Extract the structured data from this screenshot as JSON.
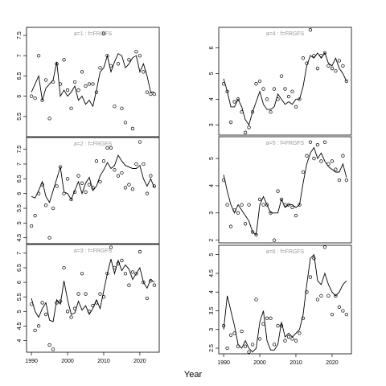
{
  "xlabel": "Year",
  "chart_data": [
    {
      "type": "scatter-line",
      "title": "a=1 : f=FRGFS",
      "x": [
        1990,
        1991,
        1992,
        1993,
        1994,
        1995,
        1996,
        1997,
        1998,
        1999,
        2000,
        2001,
        2002,
        2003,
        2004,
        2005,
        2006,
        2007,
        2008,
        2009,
        2010,
        2011,
        2012,
        2013,
        2014,
        2015,
        2016,
        2017,
        2018,
        2019,
        2020,
        2021,
        2022,
        2023,
        2024
      ],
      "points": [
        6.0,
        5.95,
        7.0,
        5.9,
        6.4,
        5.45,
        6.35,
        6.8,
        6.3,
        6.9,
        6.15,
        5.7,
        6.35,
        6.15,
        6.6,
        6.25,
        6.3,
        6.3,
        6.1,
        6.7,
        7.55,
        7.0,
        6.75,
        5.75,
        6.8,
        5.7,
        5.35,
        6.9,
        5.2,
        7.1,
        7.0,
        6.6,
        6.1,
        6.05,
        6.05
      ],
      "line": [
        6.1,
        6.3,
        6.5,
        5.9,
        6.2,
        6.3,
        6.4,
        6.85,
        6.0,
        6.15,
        6.0,
        6.1,
        6.25,
        5.9,
        6.0,
        5.8,
        5.9,
        5.75,
        6.15,
        6.6,
        6.7,
        7.0,
        6.6,
        6.85,
        7.05,
        7.0,
        6.7,
        6.8,
        6.95,
        7.0,
        6.6,
        6.8,
        6.5,
        6.1,
        6.1
      ],
      "xlim": [
        1988.64,
        2025.36
      ],
      "ylim": [
        5.0,
        7.7
      ],
      "yticks": [
        5.5,
        6.0,
        6.5,
        7.0,
        7.5
      ]
    },
    {
      "type": "scatter-line",
      "title": "a=2 : f=FRGFS",
      "x": [
        1990,
        1991,
        1992,
        1993,
        1994,
        1995,
        1996,
        1997,
        1998,
        1999,
        2000,
        2001,
        2002,
        2003,
        2004,
        2005,
        2006,
        2007,
        2008,
        2009,
        2010,
        2011,
        2012,
        2013,
        2014,
        2015,
        2016,
        2017,
        2018,
        2019,
        2020,
        2021,
        2022,
        2023,
        2024
      ],
      "points": [
        4.9,
        5.25,
        6.0,
        6.3,
        5.6,
        4.5,
        5.5,
        6.25,
        6.9,
        6.0,
        6.5,
        5.8,
        6.05,
        6.6,
        6.35,
        6.05,
        6.3,
        6.2,
        7.1,
        6.4,
        7.1,
        7.55,
        7.55,
        6.8,
        6.6,
        6.7,
        6.2,
        6.3,
        6.15,
        7.0,
        7.75,
        7.0,
        6.0,
        6.6,
        6.25
      ],
      "line": [
        5.9,
        5.85,
        6.1,
        6.4,
        5.9,
        5.7,
        6.1,
        6.5,
        6.9,
        6.05,
        6.0,
        5.8,
        6.1,
        6.4,
        6.0,
        6.35,
        6.55,
        6.1,
        6.25,
        6.6,
        6.8,
        7.05,
        6.85,
        6.95,
        7.3,
        7.1,
        6.95,
        6.9,
        6.85,
        6.85,
        6.95,
        6.5,
        6.25,
        6.5,
        6.2
      ],
      "xlim": [
        1988.64,
        2025.36
      ],
      "ylim": [
        4.3,
        7.9
      ],
      "yticks": [
        4.5,
        5.0,
        5.5,
        6.0,
        6.5,
        7.0,
        7.5
      ]
    },
    {
      "type": "scatter-line",
      "title": "a=3 : f=FRGFS",
      "x": [
        1990,
        1991,
        1992,
        1993,
        1994,
        1995,
        1996,
        1997,
        1998,
        1999,
        2000,
        2001,
        2002,
        2003,
        2004,
        2005,
        2006,
        2007,
        2008,
        2009,
        2010,
        2011,
        2012,
        2013,
        2014,
        2015,
        2016,
        2017,
        2018,
        2019,
        2020,
        2021,
        2022,
        2023,
        2024
      ],
      "points": [
        5.25,
        4.35,
        4.5,
        5.3,
        4.9,
        3.85,
        3.7,
        5.3,
        5.35,
        6.5,
        5.0,
        4.8,
        5.1,
        5.6,
        6.3,
        5.6,
        5.0,
        5.2,
        5.3,
        5.6,
        5.5,
        6.3,
        7.2,
        6.5,
        6.65,
        6.75,
        6.3,
        5.9,
        6.35,
        6.3,
        7.05,
        6.0,
        5.45,
        6.05,
        5.9
      ],
      "line": [
        5.45,
        5.0,
        4.8,
        5.1,
        5.3,
        4.7,
        4.65,
        5.4,
        5.25,
        6.05,
        5.4,
        4.9,
        4.95,
        5.35,
        5.05,
        5.2,
        4.9,
        5.1,
        5.4,
        5.1,
        5.7,
        6.3,
        6.8,
        6.3,
        6.75,
        6.4,
        6.6,
        6.45,
        6.1,
        6.3,
        6.5,
        6.0,
        5.8,
        6.1,
        6.0
      ],
      "xlim": [
        1988.64,
        2025.36
      ],
      "ylim": [
        3.6,
        7.3
      ],
      "yticks": [
        4.0,
        4.5,
        5.0,
        5.5,
        6.0,
        6.5,
        7.0
      ],
      "xticks": [
        1990,
        2000,
        2010,
        2020
      ]
    },
    {
      "type": "scatter-line",
      "title": "a=4 : f=FRGFS",
      "x": [
        1990,
        1991,
        1992,
        1993,
        1994,
        1995,
        1996,
        1997,
        1998,
        1999,
        2000,
        2001,
        2002,
        2003,
        2004,
        2005,
        2006,
        2007,
        2008,
        2009,
        2010,
        2011,
        2012,
        2013,
        2014,
        2015,
        2016,
        2017,
        2018,
        2019,
        2020,
        2021,
        2022,
        2023,
        2024
      ],
      "points": [
        4.6,
        4.3,
        3.1,
        3.9,
        4.0,
        3.5,
        2.7,
        2.9,
        3.5,
        4.6,
        4.7,
        4.4,
        4.0,
        3.5,
        4.4,
        4.0,
        4.9,
        4.4,
        4.1,
        4.3,
        3.7,
        4.0,
        5.6,
        5.4,
        6.7,
        5.7,
        5.2,
        5.7,
        5.8,
        5.3,
        5.2,
        5.1,
        5.5,
        5.3,
        4.7
      ],
      "line": [
        4.8,
        4.3,
        3.7,
        3.7,
        4.0,
        3.7,
        3.2,
        3.0,
        3.5,
        3.9,
        4.3,
        3.8,
        3.6,
        3.6,
        3.7,
        4.2,
        4.0,
        3.8,
        3.9,
        3.8,
        4.0,
        4.0,
        4.5,
        5.3,
        5.7,
        5.6,
        5.8,
        5.6,
        5.8,
        5.4,
        5.3,
        5.6,
        5.2,
        5.0,
        4.7
      ],
      "xlim": [
        1988.64,
        2025.36
      ],
      "ylim": [
        2.6,
        6.8
      ],
      "yticks": [
        3,
        4,
        5,
        6
      ]
    },
    {
      "type": "scatter-line",
      "title": "a=5 : f=FRGFS",
      "x": [
        1990,
        1991,
        1992,
        1993,
        1994,
        1995,
        1996,
        1997,
        1998,
        1999,
        2000,
        2001,
        2002,
        2003,
        2004,
        2005,
        2006,
        2007,
        2008,
        2009,
        2010,
        2011,
        2012,
        2013,
        2014,
        2015,
        2016,
        2017,
        2018,
        2019,
        2020,
        2021,
        2022,
        2023,
        2024
      ],
      "points": [
        4.2,
        3.3,
        2.5,
        3.1,
        3.0,
        3.3,
        2.6,
        3.3,
        2.3,
        2.2,
        3.5,
        3.3,
        3.3,
        3.0,
        2.0,
        3.8,
        3.5,
        3.3,
        3.3,
        3.2,
        2.9,
        3.3,
        4.5,
        5.1,
        5.6,
        5.0,
        5.5,
        4.9,
        5.6,
        4.8,
        4.9,
        4.6,
        4.2,
        5.1,
        4.2
      ],
      "line": [
        4.4,
        3.8,
        3.3,
        3.0,
        3.3,
        3.1,
        2.9,
        2.7,
        2.3,
        2.2,
        3.3,
        3.6,
        3.3,
        3.0,
        3.0,
        3.0,
        3.5,
        3.2,
        3.3,
        3.3,
        3.2,
        3.3,
        4.1,
        4.8,
        5.2,
        5.4,
        5.0,
        5.2,
        4.9,
        4.7,
        4.6,
        4.5,
        4.5,
        4.8,
        4.3
      ],
      "xlim": [
        1988.64,
        2025.36
      ],
      "ylim": [
        1.9,
        5.8
      ],
      "yticks": [
        2,
        3,
        4,
        5
      ]
    },
    {
      "type": "scatter-line",
      "title": "a=6 : f=FRGFS",
      "x": [
        1990,
        1991,
        1992,
        1993,
        1994,
        1995,
        1996,
        1997,
        1998,
        1999,
        2000,
        2001,
        2002,
        2003,
        2004,
        2005,
        2006,
        2007,
        2008,
        2009,
        2010,
        2011,
        2012,
        2013,
        2014,
        2015,
        2016,
        2017,
        2018,
        2019,
        2020,
        2021,
        2022,
        2023,
        2024
      ],
      "points": [
        3.1,
        2.5,
        2.85,
        2.9,
        2.55,
        2.95,
        2.55,
        2.4,
        2.6,
        3.8,
        2.75,
        3.15,
        3.3,
        3.3,
        2.6,
        3.1,
        3.1,
        2.7,
        2.8,
        2.75,
        2.7,
        2.9,
        3.3,
        4.0,
        4.4,
        4.9,
        3.8,
        3.9,
        5.2,
        3.9,
        3.4,
        3.9,
        3.6,
        3.5,
        3.4
      ],
      "line": [
        3.0,
        3.9,
        3.5,
        3.1,
        2.6,
        2.5,
        2.7,
        2.5,
        2.4,
        2.5,
        3.2,
        3.5,
        2.7,
        2.45,
        2.45,
        2.6,
        3.2,
        2.8,
        2.9,
        2.8,
        2.9,
        3.0,
        3.4,
        4.2,
        4.9,
        5.0,
        4.3,
        4.2,
        4.5,
        4.2,
        4.0,
        3.9,
        4.0,
        4.2,
        4.3
      ],
      "xlim": [
        1988.64,
        2025.36
      ],
      "ylim": [
        2.35,
        5.25
      ],
      "yticks": [
        2.5,
        3.0,
        3.5,
        4.0,
        4.5,
        5.0
      ],
      "xticks": [
        1990,
        2000,
        2010,
        2020
      ]
    }
  ]
}
